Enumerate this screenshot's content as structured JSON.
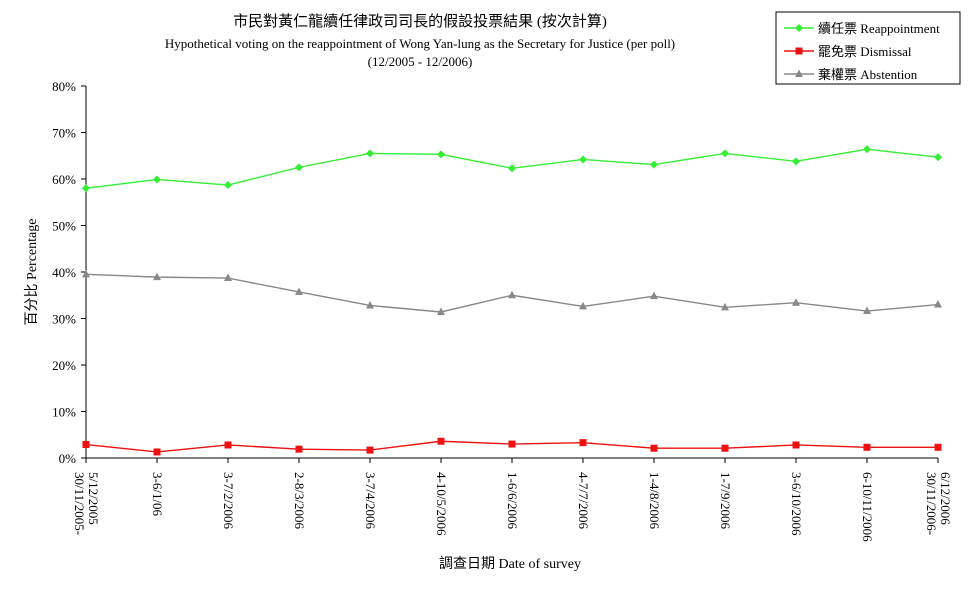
{
  "chart_data": {
    "type": "line",
    "title": "市民對黃仁龍續任律政司司長的假設投票結果 (按次計算)",
    "subtitle": "Hypothetical voting on the reappointment of Wong Yan-lung as the Secretary for Justice (per poll)",
    "subtitle2": "(12/2005 - 12/2006)",
    "xlabel": "調查日期 Date of survey",
    "ylabel": "百分比 Percentage",
    "ylim": [
      0,
      80
    ],
    "yticks": [
      "0%",
      "10%",
      "20%",
      "30%",
      "40%",
      "50%",
      "60%",
      "70%",
      "80%"
    ],
    "categories": [
      "30/11/2005-5/12/2005",
      "3-6/1/06",
      "3-7/2/2006",
      "2-8/3/2006",
      "3-7/4/2006",
      "4-10/5/2006",
      "1-6/6/2006",
      "4-7/7/2006",
      "1-4/8/2006",
      "1-7/9/2006",
      "3-6/10/2006",
      "6-10/11/2006",
      "30/11/2006-6/12/2006"
    ],
    "category_lines": [
      [
        "30/11/2005-",
        "5/12/2005"
      ],
      [
        "3-6/1/06"
      ],
      [
        "3-7/2/2006"
      ],
      [
        "2-8/3/2006"
      ],
      [
        "3-7/4/2006"
      ],
      [
        "4-10/5/2006"
      ],
      [
        "1-6/6/2006"
      ],
      [
        "4-7/7/2006"
      ],
      [
        "1-4/8/2006"
      ],
      [
        "1-7/9/2006"
      ],
      [
        "3-6/10/2006"
      ],
      [
        "6-10/11/2006"
      ],
      [
        "30/11/2006-",
        "6/12/2006"
      ]
    ],
    "series": [
      {
        "name": "續任票 Reappointment",
        "color": "#33ee33",
        "marker": "diamond",
        "values": [
          58.0,
          59.9,
          58.7,
          62.5,
          65.5,
          65.3,
          62.3,
          64.2,
          63.1,
          65.5,
          63.8,
          66.4,
          64.7
        ]
      },
      {
        "name": "罷免票 Dismissal",
        "color": "#ee1111",
        "marker": "square",
        "values": [
          2.9,
          1.3,
          2.8,
          1.9,
          1.7,
          3.6,
          3.0,
          3.3,
          2.1,
          2.1,
          2.8,
          2.3,
          2.3
        ]
      },
      {
        "name": "棄權票 Abstention",
        "color": "#888888",
        "marker": "triangle",
        "values": [
          39.5,
          38.9,
          38.7,
          35.7,
          32.8,
          31.4,
          35.0,
          32.6,
          34.8,
          32.4,
          33.4,
          31.6,
          33.0
        ]
      }
    ],
    "grid": false,
    "legend_position": "top-right"
  }
}
